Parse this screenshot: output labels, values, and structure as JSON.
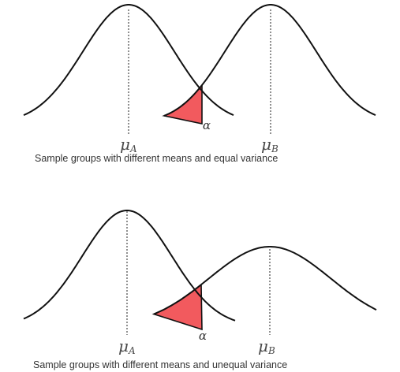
{
  "panels": [
    {
      "id": "equal-variance",
      "mean_a_label": "μ",
      "mean_a_sub": "A",
      "mean_b_label": "μ",
      "mean_b_sub": "B",
      "alpha_label": "α",
      "caption": "Sample groups with different means and equal variance",
      "alpha_color": "#f25a5e"
    },
    {
      "id": "unequal-variance",
      "mean_a_label": "μ",
      "mean_a_sub": "A",
      "mean_b_label": "μ",
      "mean_b_sub": "B",
      "alpha_label": "α",
      "caption": "Sample groups with different means and unequal variance",
      "alpha_color": "#f25a5e"
    }
  ]
}
